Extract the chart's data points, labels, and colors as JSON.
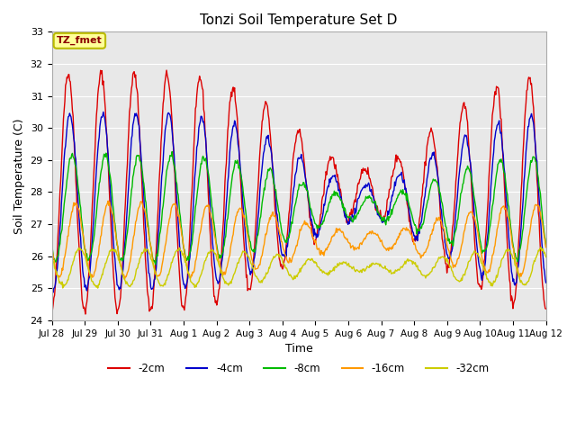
{
  "title": "Tonzi Soil Temperature Set D",
  "xlabel": "Time",
  "ylabel": "Soil Temperature (C)",
  "ylim": [
    24.0,
    33.0
  ],
  "yticks": [
    24.0,
    25.0,
    26.0,
    27.0,
    28.0,
    29.0,
    30.0,
    31.0,
    32.0,
    33.0
  ],
  "xtick_labels": [
    "Jul 28",
    "Jul 29",
    "Jul 30",
    "Jul 31",
    "Aug 1",
    "Aug 2",
    "Aug 3",
    "Aug 4",
    "Aug 5",
    "Aug 6",
    "Aug 7",
    "Aug 8",
    "Aug 9",
    "Aug 10",
    "Aug 11",
    "Aug 12"
  ],
  "series_colors": [
    "#dd0000",
    "#0000cc",
    "#00bb00",
    "#ff9900",
    "#cccc00"
  ],
  "series_labels": [
    "-2cm",
    "-4cm",
    "-8cm",
    "-16cm",
    "-32cm"
  ],
  "annotation_text": "TZ_fmet",
  "annotation_bg": "#ffff99",
  "annotation_border": "#bbbb00",
  "bg_color": "#e8e8e8",
  "plot_bg": "#e8e8e8",
  "n_days": 15,
  "n_points_per_day": 48
}
